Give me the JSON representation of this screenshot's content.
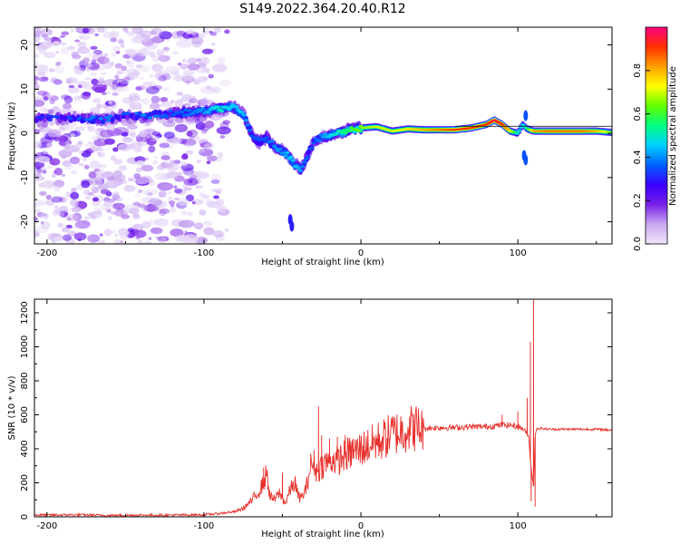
{
  "figure": {
    "title": "S149.2022.364.20.40.R12"
  },
  "chart_data": [
    {
      "type": "heatmap",
      "xlabel": "Height of straight line (km)",
      "ylabel": "Frequency (Hz)",
      "xlim": [
        -208,
        160
      ],
      "ylim": [
        -25,
        24
      ],
      "xticks": [
        -200,
        -100,
        0,
        100
      ],
      "yticks": [
        -20,
        -10,
        0,
        10,
        20
      ],
      "grid": false,
      "colorbar": {
        "label": "Normalized spectral amplitude",
        "range": [
          0.0,
          1.0
        ],
        "ticks": [
          0.0,
          0.2,
          0.4,
          0.6,
          0.8
        ],
        "tick_labels": [
          "0.0",
          "0.2",
          "0.4",
          "0.6",
          "0.8"
        ],
        "colormap": [
          "#f0e8fa",
          "#c9a7f0",
          "#7a1fe8",
          "#3a00ff",
          "#0060ff",
          "#00d0ff",
          "#00ff80",
          "#60ff00",
          "#ffff00",
          "#ffa000",
          "#ff3000",
          "#ff0080"
        ]
      },
      "ridge": {
        "x": [
          -210,
          -180,
          -165,
          -150,
          -138,
          -120,
          -100,
          -90,
          -82,
          -75,
          -70,
          -65,
          -60,
          -55,
          -50,
          -46,
          -42,
          -38,
          -34,
          -30,
          -25,
          -20,
          -15,
          -10,
          -5,
          0,
          10,
          20,
          30,
          40,
          50,
          60,
          70,
          80,
          85,
          90,
          95,
          100,
          103,
          106,
          110,
          120,
          130,
          140,
          150,
          160
        ],
        "y": [
          3.5,
          3.5,
          3,
          4,
          4,
          4.5,
          5,
          5.5,
          6,
          4.5,
          0,
          -2,
          -1,
          -3,
          -4,
          -5,
          -7,
          -8,
          -5,
          -2,
          -1,
          -0.5,
          0,
          0.5,
          1,
          1.2,
          1.5,
          0.5,
          1,
          0.8,
          0.8,
          0.8,
          1.2,
          2,
          3,
          2,
          0.5,
          0,
          2,
          1,
          0.5,
          0.5,
          0.5,
          0.5,
          0.5,
          0.2
        ],
        "amplitude": [
          0.25,
          0.3,
          0.35,
          0.3,
          0.35,
          0.3,
          0.35,
          0.45,
          0.4,
          0.4,
          0.3,
          0.3,
          0.3,
          0.35,
          0.35,
          0.4,
          0.4,
          0.35,
          0.3,
          0.3,
          0.35,
          0.4,
          0.45,
          0.5,
          0.55,
          0.6,
          0.65,
          0.65,
          0.7,
          0.75,
          0.8,
          0.85,
          0.85,
          0.85,
          0.9,
          0.85,
          0.7,
          0.45,
          0.4,
          0.5,
          0.75,
          0.8,
          0.8,
          0.8,
          0.75,
          0.6
        ]
      },
      "noise_region": [
        -210,
        -85
      ]
    },
    {
      "type": "line",
      "xlabel": "Height of straight line (km)",
      "ylabel": "SNR (10 * v/v)",
      "xlim": [
        -208,
        160
      ],
      "ylim": [
        0,
        1280
      ],
      "xticks": [
        -200,
        -100,
        0,
        100
      ],
      "yticks": [
        0,
        200,
        400,
        600,
        800,
        1000,
        1200
      ],
      "grid": false,
      "series": [
        {
          "color": "#e8302c",
          "x": [
            -210,
            -200,
            -180,
            -160,
            -140,
            -120,
            -100,
            -90,
            -80,
            -75,
            -70,
            -65,
            -62,
            -60,
            -58,
            -55,
            -52,
            -50,
            -48,
            -45,
            -42,
            -40,
            -38,
            -35,
            -32,
            -30,
            -28,
            -26,
            -24,
            -22,
            -20,
            -18,
            -15,
            -12,
            -10,
            -8,
            -5,
            -2,
            0,
            5,
            10,
            15,
            20,
            25,
            30,
            35,
            40,
            50,
            60,
            70,
            80,
            85,
            90,
            95,
            100,
            103,
            105,
            107,
            108,
            109,
            110,
            111,
            112,
            115,
            120,
            130,
            140,
            150,
            160
          ],
          "y": [
            12,
            10,
            12,
            8,
            10,
            10,
            12,
            20,
            30,
            50,
            90,
            150,
            200,
            260,
            120,
            100,
            140,
            110,
            80,
            160,
            200,
            120,
            110,
            160,
            300,
            320,
            260,
            290,
            310,
            320,
            330,
            340,
            330,
            350,
            360,
            370,
            380,
            390,
            400,
            420,
            440,
            460,
            490,
            500,
            520,
            525,
            520,
            525,
            525,
            530,
            530,
            535,
            540,
            540,
            530,
            520,
            500,
            470,
            330,
            250,
            180,
            470,
            520,
            520,
            515,
            515,
            515,
            515,
            510
          ],
          "spikes": [
            {
              "x": -62,
              "y": 290
            },
            {
              "x": -50,
              "y": 260
            },
            {
              "x": -42,
              "y": 240
            },
            {
              "x": -30,
              "y": 270
            },
            {
              "x": -27,
              "y": 650
            },
            {
              "x": -25,
              "y": 480
            },
            {
              "x": -20,
              "y": 460
            },
            {
              "x": -15,
              "y": 470
            },
            {
              "x": -10,
              "y": 480
            },
            {
              "x": -5,
              "y": 460
            },
            {
              "x": 90,
              "y": 600
            },
            {
              "x": 100,
              "y": 620
            },
            {
              "x": 106,
              "y": 700
            },
            {
              "x": 108,
              "y": 1030
            },
            {
              "x": 110,
              "y": 1280
            },
            {
              "x": 108.5,
              "y": 90
            },
            {
              "x": 111,
              "y": 60
            }
          ]
        }
      ]
    }
  ]
}
